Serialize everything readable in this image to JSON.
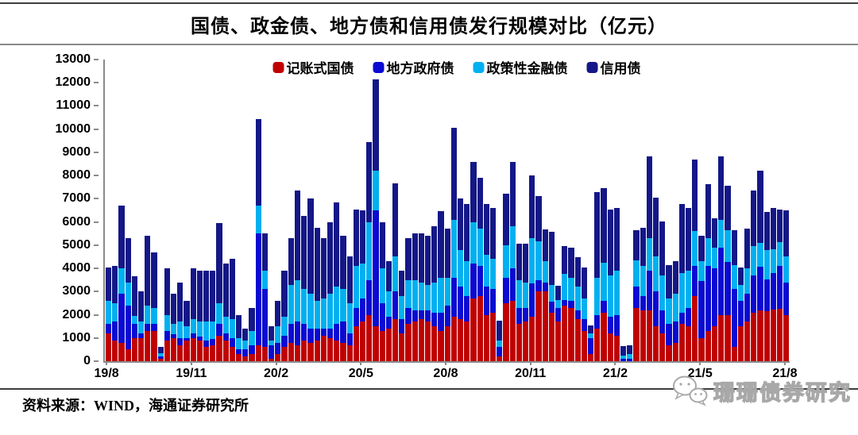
{
  "title": "国债、政金债、地方债和信用债发行规模对比（亿元）",
  "legend": [
    {
      "label": "记账式国债",
      "color": "#C00000"
    },
    {
      "label": "地方政府债",
      "color": "#0A0AD2"
    },
    {
      "label": "政策性金融债",
      "color": "#00B0F0"
    },
    {
      "label": "信用债",
      "color": "#141787"
    }
  ],
  "footer": {
    "source_label": "资料来源：WIND，海通证券研究所"
  },
  "watermark": {
    "text": "珊珊债券研究",
    "icon": "wechat-chat-bubbles-icon"
  },
  "chart_data": {
    "type": "bar",
    "stacked": true,
    "title": "国债、政金债、地方债和信用债发行规模对比（亿元）",
    "unit": "亿元",
    "ylim": [
      0,
      13000
    ],
    "ytick_step": 1000,
    "grid": false,
    "legend_position": "top-center",
    "x_tick_labels": [
      "19/8",
      "19/11",
      "20/2",
      "20/5",
      "20/8",
      "20/11",
      "21/2",
      "21/5",
      "21/8"
    ],
    "x_tick_positions": [
      0,
      13,
      26,
      39,
      52,
      65,
      78,
      91,
      104
    ],
    "x_frequency": "weekly",
    "series": [
      {
        "name": "记账式国债",
        "color": "#C00000",
        "values": [
          1200,
          900,
          800,
          500,
          1000,
          1000,
          1300,
          1300,
          100,
          900,
          1000,
          700,
          900,
          1000,
          900,
          600,
          700,
          1100,
          900,
          600,
          300,
          200,
          300,
          700,
          600,
          100,
          300,
          600,
          800,
          700,
          900,
          800,
          900,
          1100,
          1000,
          900,
          800,
          700,
          1500,
          1700,
          2000,
          1500,
          1300,
          1400,
          1800,
          1200,
          1600,
          1700,
          1800,
          1700,
          1500,
          1300,
          1500,
          1900,
          1800,
          1700,
          2700,
          2800,
          2000,
          2100,
          200,
          2500,
          2600,
          1600,
          1700,
          1900,
          3000,
          3000,
          2100,
          1700,
          2400,
          2300,
          1800,
          1300,
          300,
          1400,
          2100,
          1200,
          1100,
          0,
          0,
          2300,
          2200,
          2200,
          1500,
          1200,
          700,
          800,
          1600,
          1500,
          2800,
          1000,
          1300,
          1500,
          2000,
          2000,
          600,
          1500,
          1700,
          2100,
          2200,
          2160,
          2210,
          2270,
          2000
        ]
      },
      {
        "name": "地方政府债",
        "color": "#0A0AD2",
        "values": [
          400,
          800,
          2100,
          1900,
          600,
          200,
          300,
          300,
          100,
          400,
          150,
          300,
          100,
          200,
          150,
          300,
          250,
          500,
          300,
          400,
          200,
          300,
          400,
          4800,
          2500,
          600,
          500,
          500,
          800,
          1000,
          700,
          600,
          500,
          300,
          400,
          700,
          900,
          500,
          800,
          1000,
          1500,
          5000,
          1200,
          500,
          1200,
          600,
          700,
          500,
          400,
          500,
          600,
          800,
          900,
          1700,
          1400,
          1100,
          1500,
          1300,
          1200,
          1000,
          400,
          1100,
          1400,
          700,
          600,
          1450,
          500,
          400,
          450,
          600,
          250,
          300,
          400,
          500,
          700,
          600,
          500,
          700,
          900,
          100,
          100,
          900,
          600,
          1700,
          1500,
          1000,
          900,
          900,
          500,
          800,
          1300,
          2450,
          2800,
          2500,
          2900,
          2280,
          2500,
          1100,
          1200,
          1600,
          1880,
          1370,
          1600,
          1820,
          1400
        ]
      },
      {
        "name": "政策性金融债",
        "color": "#00B0F0",
        "values": [
          1000,
          800,
          1100,
          1000,
          350,
          500,
          800,
          700,
          150,
          700,
          450,
          700,
          500,
          600,
          650,
          800,
          750,
          900,
          700,
          800,
          500,
          400,
          600,
          1200,
          800,
          200,
          700,
          800,
          1700,
          1800,
          1500,
          1500,
          1200,
          1300,
          1500,
          1600,
          1400,
          1300,
          1800,
          1500,
          2500,
          1700,
          1500,
          1100,
          1500,
          1000,
          1200,
          1300,
          1200,
          1100,
          1300,
          1500,
          1200,
          2500,
          1600,
          1500,
          1800,
          1600,
          1400,
          1300,
          300,
          1400,
          1800,
          1200,
          1100,
          1950,
          1650,
          900,
          740,
          340,
          1100,
          1000,
          1000,
          900,
          200,
          1600,
          1650,
          1800,
          1900,
          150,
          200,
          1150,
          1300,
          1400,
          1500,
          1500,
          1100,
          1200,
          1700,
          1600,
          1500,
          850,
          1200,
          900,
          1200,
          1370,
          1030,
          680,
          1100,
          1250,
          1030,
          1250,
          1030,
          1030,
          1100
        ]
      },
      {
        "name": "信用债",
        "color": "#141787",
        "values": [
          1450,
          1600,
          2700,
          1900,
          1700,
          1300,
          3000,
          2400,
          250,
          2000,
          1300,
          1700,
          1100,
          2200,
          2200,
          2200,
          2200,
          3450,
          2300,
          2600,
          1000,
          500,
          1000,
          3750,
          1600,
          600,
          1100,
          2000,
          2000,
          3850,
          3170,
          4100,
          3160,
          2600,
          3090,
          3640,
          2300,
          2000,
          2450,
          2300,
          3450,
          3950,
          2000,
          1300,
          3170,
          1100,
          1800,
          2000,
          2100,
          2100,
          2400,
          2850,
          2100,
          3950,
          2200,
          2470,
          2600,
          2200,
          2170,
          2200,
          850,
          2230,
          2800,
          1560,
          1660,
          2700,
          1960,
          1390,
          2290,
          600,
          1200,
          1290,
          1290,
          1340,
          330,
          3700,
          3200,
          2840,
          2700,
          400,
          400,
          1280,
          1650,
          3530,
          2560,
          2330,
          1450,
          1420,
          2970,
          2700,
          3100,
          1100,
          2330,
          1250,
          2730,
          1920,
          1500,
          760,
          1700,
          2400,
          3090,
          1650,
          1760,
          1430,
          2000
        ]
      }
    ]
  }
}
